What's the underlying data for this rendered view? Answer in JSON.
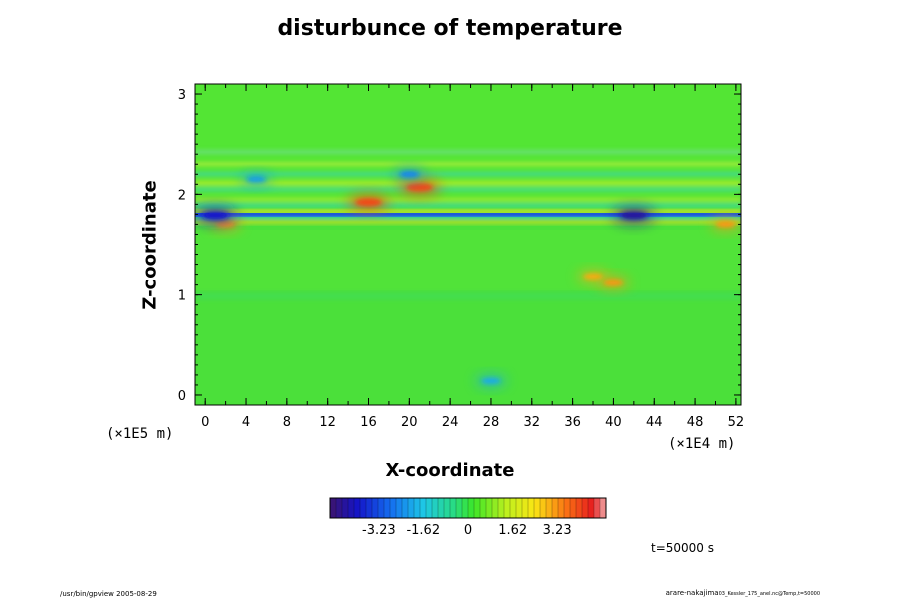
{
  "chart_data": {
    "type": "heatmap",
    "title": "disturbunce of temperature",
    "xlabel": "X-coordinate",
    "ylabel": "Z-coordinate",
    "x_unit": "(×1E4 m)",
    "y_unit": "(×1E5 m)",
    "xlim": [
      -1,
      52.5
    ],
    "ylim": [
      -0.1,
      3.1
    ],
    "x_ticks": [
      0,
      4,
      8,
      12,
      16,
      20,
      24,
      28,
      32,
      36,
      40,
      44,
      48,
      52
    ],
    "y_ticks": [
      0,
      1,
      2,
      3
    ],
    "colorbar": {
      "min": -5.0,
      "max": 5.0,
      "tick_values": [
        -3.23,
        -1.62,
        0,
        1.62,
        3.23
      ],
      "tick_labels": [
        "-3.23",
        "-1.62",
        "0",
        "1.62",
        "3.23"
      ]
    },
    "features": [
      {
        "x": 16,
        "z": 1.92,
        "value": 4.0
      },
      {
        "x": 21,
        "z": 2.07,
        "value": 4.0
      },
      {
        "x": 38,
        "z": 1.18,
        "value": 3.0
      },
      {
        "x": 40,
        "z": 1.12,
        "value": 3.2
      },
      {
        "x": 2,
        "z": 1.7,
        "value": 3.2
      },
      {
        "x": 51,
        "z": 1.7,
        "value": 3.2
      },
      {
        "x": 42,
        "z": 1.79,
        "value": -4.5
      },
      {
        "x": 1,
        "z": 1.79,
        "value": -4.0
      },
      {
        "x": 28,
        "z": 0.14,
        "value": -2.0
      },
      {
        "x": 20,
        "z": 2.2,
        "value": -2.5
      },
      {
        "x": 5,
        "z": 2.15,
        "value": -2.2
      }
    ],
    "time_label": "t=50000 s"
  },
  "footer": {
    "left": "/usr/bin/gpview 2005-08-29",
    "right_main": "arare-nakajima",
    "right_small": "03_Kessler_175_anel.nc@Temp,t=50000"
  }
}
